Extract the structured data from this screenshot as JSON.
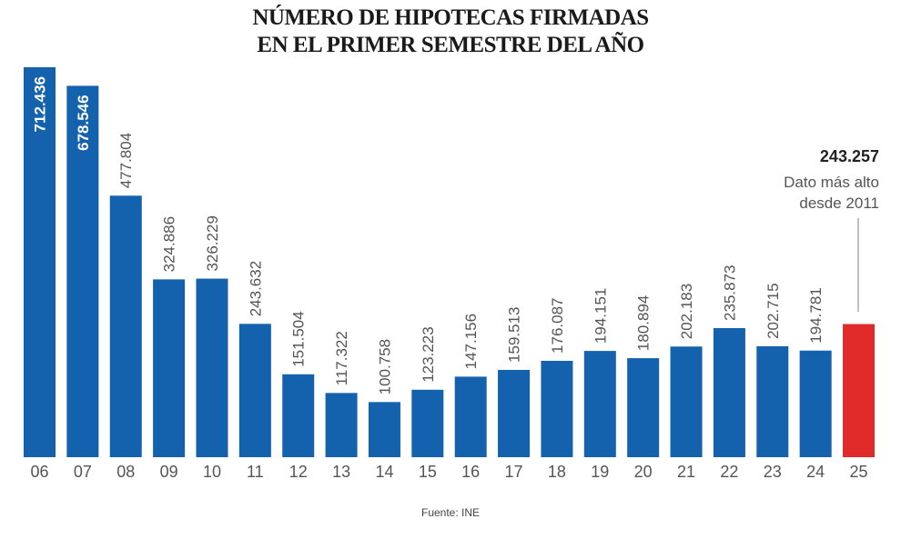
{
  "chart_data": {
    "type": "bar",
    "title": [
      "NÚMERO DE HIPOTECAS FIRMADAS",
      "EN EL PRIMER SEMESTRE DEL AÑO"
    ],
    "xlabel": "",
    "ylabel": "",
    "ylim": [
      0,
      712436
    ],
    "grid": false,
    "categories": [
      "06",
      "07",
      "08",
      "09",
      "10",
      "11",
      "12",
      "13",
      "14",
      "15",
      "16",
      "17",
      "18",
      "19",
      "20",
      "21",
      "22",
      "23",
      "24",
      "25"
    ],
    "values": [
      712436,
      678546,
      477804,
      324886,
      326229,
      243632,
      151504,
      117322,
      100758,
      123223,
      147156,
      159513,
      176087,
      194151,
      180894,
      202183,
      235873,
      202715,
      194781,
      243257
    ],
    "value_labels": [
      "712.436",
      "678.546",
      "477.804",
      "324.886",
      "326.229",
      "243.632",
      "151.504",
      "117.322",
      "100.758",
      "123.223",
      "147.156",
      "159.513",
      "176.087",
      "194.151",
      "180.894",
      "202.183",
      "235.873",
      "202.715",
      "194.781",
      "243.257"
    ],
    "colors": {
      "default": "#1462ad",
      "highlight": "#e12b2b"
    },
    "highlight_index": 19,
    "annotation": {
      "value": "243.257",
      "lines": [
        "Dato más alto",
        "desde 2011"
      ]
    },
    "source": "Fuente: INE"
  }
}
